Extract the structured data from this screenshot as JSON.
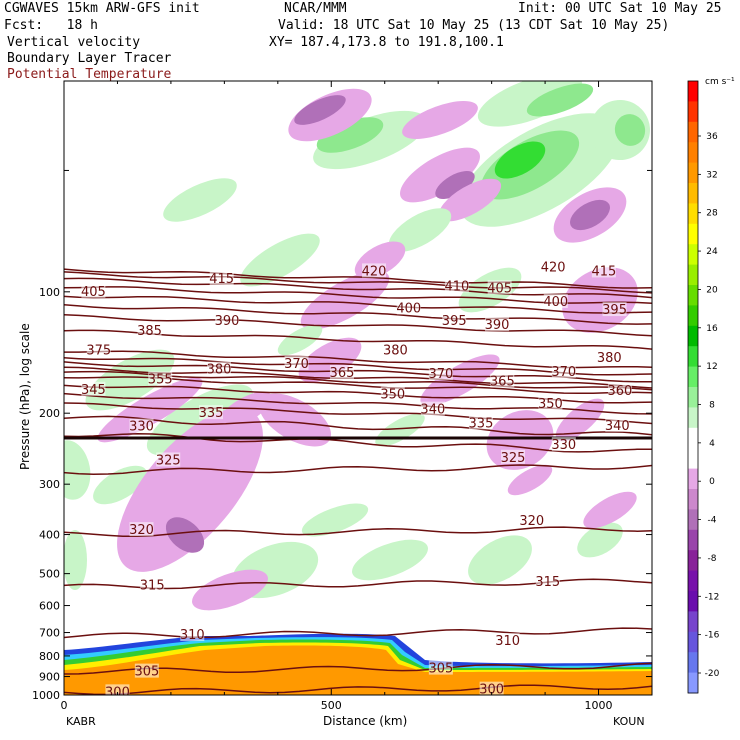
{
  "header": {
    "title_left": "CGWAVES 15km ARW-GFS init",
    "title_center": "NCAR/MMM",
    "title_right": "Init: 00 UTC Sat 10 May 25",
    "fcst": "Fcst:   18 h",
    "valid": "Valid: 18 UTC Sat 10 May 25 (13 CDT Sat 10 May 25)",
    "field1": "Vertical velocity",
    "field2": "Boundary Layer Tracer",
    "field3": "Potential Temperature",
    "xy": "XY= 187.4,173.8 to 191.8,100.1"
  },
  "colors": {
    "theta_contour": "#6b0f0f",
    "up_light": "#c8f5c8",
    "up_mid": "#8ee88e",
    "up_strong": "#33dd33",
    "down_light": "#e6a8e6",
    "down_mid": "#b070b8",
    "pbl_orange": "#ff9900",
    "pbl_yellow": "#ffee00",
    "pbl_green": "#33cc33",
    "pbl_blue": "#2244dd",
    "pbl_cyan": "#33ccff"
  },
  "chart_data": {
    "type": "heatmap",
    "xlabel": "Distance (km)",
    "ylabel": "Pressure (hPa), log scale",
    "x_ticks": [
      "0",
      "500",
      "1000"
    ],
    "x_end_labels": {
      "left": "KABR",
      "right": "KOUN"
    },
    "xlim": [
      0,
      1100
    ],
    "ylim": [
      1000,
      30
    ],
    "y_ticks": [
      100,
      200,
      300,
      400,
      500,
      600,
      700,
      800,
      900,
      1000
    ],
    "y_tick_labels": [
      "100",
      "200",
      "300",
      "400",
      "500",
      "600",
      "700",
      "800",
      "900",
      "1000"
    ],
    "colorbar": {
      "unit": "cm s⁻¹",
      "labels": [
        "36",
        "32",
        "28",
        "24",
        "20",
        "16",
        "12",
        "8",
        "4",
        "0",
        "-4",
        "-8",
        "-12",
        "-16",
        "-20"
      ],
      "colors": [
        "#ff0000",
        "#ff3300",
        "#ff6600",
        "#ff8000",
        "#ff9900",
        "#ffbb00",
        "#ffdd00",
        "#ffff00",
        "#ccff00",
        "#99ee00",
        "#66dd00",
        "#33cc00",
        "#00bb00",
        "#33dd33",
        "#66ee66",
        "#99f099",
        "#c8f5c8",
        "#ffffff",
        "#ffffff",
        "#e6a8e6",
        "#cc88cc",
        "#b070b8",
        "#9944aa",
        "#882299",
        "#7711aa",
        "#6a0dad",
        "#7744cc",
        "#6655dd",
        "#6677ee",
        "#8899ff"
      ]
    },
    "theta_contours": [
      {
        "value": "300",
        "p": 985
      },
      {
        "value": "305",
        "p": 875
      },
      {
        "value": "310",
        "p": 715
      },
      {
        "value": "315",
        "p": 540
      },
      {
        "value": "320",
        "p": 400
      },
      {
        "value": "325",
        "p": 280
      },
      {
        "value": "330",
        "p": 225
      },
      {
        "value": "335",
        "p": 205
      },
      {
        "value": "340",
        "p": 190
      },
      {
        "value": "345",
        "p": 180
      },
      {
        "value": "350",
        "p": 170
      },
      {
        "value": "355",
        "p": 162
      },
      {
        "value": "360",
        "p": 158
      },
      {
        "value": "365",
        "p": 155
      },
      {
        "value": "370",
        "p": 150
      },
      {
        "value": "375",
        "p": 145
      },
      {
        "value": "380",
        "p": 140
      },
      {
        "value": "385",
        "p": 125
      },
      {
        "value": "390",
        "p": 115
      },
      {
        "value": "395",
        "p": 108
      },
      {
        "value": "400",
        "p": 102
      },
      {
        "value": "405",
        "p": 97
      },
      {
        "value": "410",
        "p": 93
      },
      {
        "value": "415",
        "p": 90
      },
      {
        "value": "420",
        "p": 88
      }
    ],
    "theta_labels": [
      {
        "text": "300",
        "x": 100,
        "p": 985
      },
      {
        "text": "305",
        "x": 155,
        "p": 875
      },
      {
        "text": "305",
        "x": 705,
        "p": 860
      },
      {
        "text": "300",
        "x": 800,
        "p": 970
      },
      {
        "text": "310",
        "x": 240,
        "p": 710
      },
      {
        "text": "310",
        "x": 830,
        "p": 735
      },
      {
        "text": "315",
        "x": 165,
        "p": 535
      },
      {
        "text": "315",
        "x": 905,
        "p": 525
      },
      {
        "text": "320",
        "x": 145,
        "p": 390
      },
      {
        "text": "320",
        "x": 875,
        "p": 370
      },
      {
        "text": "325",
        "x": 195,
        "p": 262
      },
      {
        "text": "325",
        "x": 840,
        "p": 258
      },
      {
        "text": "330",
        "x": 145,
        "p": 216
      },
      {
        "text": "330",
        "x": 935,
        "p": 240
      },
      {
        "text": "335",
        "x": 275,
        "p": 200
      },
      {
        "text": "335",
        "x": 780,
        "p": 212
      },
      {
        "text": "340",
        "x": 690,
        "p": 196
      },
      {
        "text": "340",
        "x": 1035,
        "p": 215
      },
      {
        "text": "345",
        "x": 55,
        "p": 175
      },
      {
        "text": "350",
        "x": 615,
        "p": 180
      },
      {
        "text": "350",
        "x": 910,
        "p": 190
      },
      {
        "text": "355",
        "x": 180,
        "p": 165
      },
      {
        "text": "360",
        "x": 1040,
        "p": 176
      },
      {
        "text": "365",
        "x": 520,
        "p": 159
      },
      {
        "text": "365",
        "x": 820,
        "p": 167
      },
      {
        "text": "370",
        "x": 435,
        "p": 151
      },
      {
        "text": "370",
        "x": 705,
        "p": 160
      },
      {
        "text": "370",
        "x": 935,
        "p": 158
      },
      {
        "text": "375",
        "x": 65,
        "p": 140
      },
      {
        "text": "380",
        "x": 290,
        "p": 156
      },
      {
        "text": "380",
        "x": 620,
        "p": 140
      },
      {
        "text": "380",
        "x": 1020,
        "p": 146
      },
      {
        "text": "385",
        "x": 160,
        "p": 125
      },
      {
        "text": "390",
        "x": 305,
        "p": 118
      },
      {
        "text": "390",
        "x": 810,
        "p": 121
      },
      {
        "text": "395",
        "x": 730,
        "p": 118
      },
      {
        "text": "395",
        "x": 1030,
        "p": 111
      },
      {
        "text": "400",
        "x": 645,
        "p": 110
      },
      {
        "text": "400",
        "x": 920,
        "p": 106
      },
      {
        "text": "405",
        "x": 55,
        "p": 100
      },
      {
        "text": "405",
        "x": 815,
        "p": 98
      },
      {
        "text": "410",
        "x": 735,
        "p": 97
      },
      {
        "text": "415",
        "x": 295,
        "p": 93
      },
      {
        "text": "415",
        "x": 1010,
        "p": 89
      },
      {
        "text": "420",
        "x": 580,
        "p": 89
      },
      {
        "text": "420",
        "x": 915,
        "p": 87
      }
    ]
  }
}
